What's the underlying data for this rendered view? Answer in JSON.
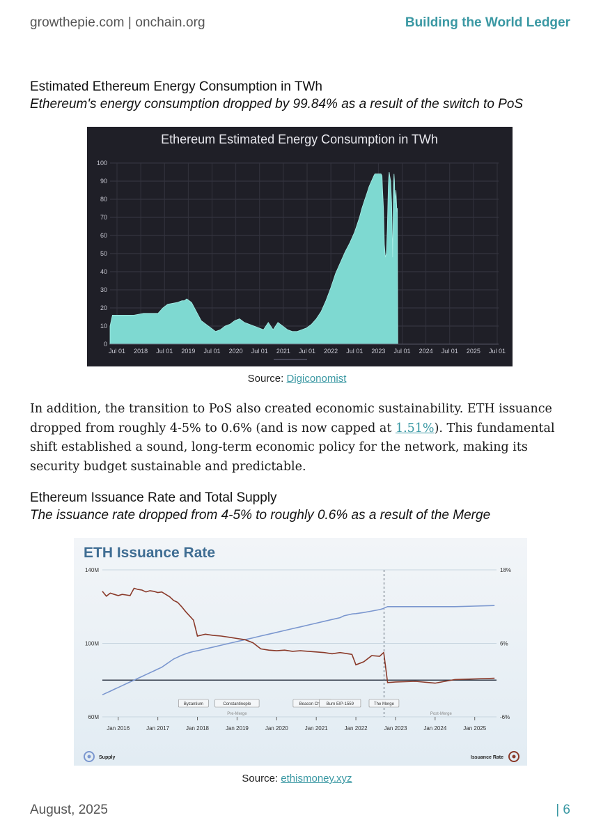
{
  "header": {
    "left": "growthepie.com | onchain.org",
    "right": "Building the World Ledger"
  },
  "section1": {
    "title": "Estimated Ethereum Energy Consumption in TWh",
    "subtitle": "Ethereum's energy consumption dropped by 99.84% as a result of the switch to PoS",
    "source_prefix": "Source: ",
    "source_link": "Digiconomist"
  },
  "paragraph": {
    "text1": "In addition, the transition to PoS also created economic sustainability. ETH issuance dropped from roughly 4-5% to 0.6% (and is now capped at ",
    "link": "1.51%",
    "text2": "). This fundamental shift established a sound, long-term economic policy for the network, making its security budget sustainable and predictable."
  },
  "section2": {
    "title": "Ethereum Issuance Rate and Total Supply",
    "subtitle": "The issuance rate dropped from 4-5% to roughly 0.6% as a result of the Merge",
    "source_prefix": "Source: ",
    "source_link": "ethismoney.xyz"
  },
  "footer": {
    "left": "August, 2025",
    "right": "| 6"
  },
  "chart_data": [
    {
      "type": "area",
      "title": "Ethereum Estimated Energy Consumption in TWh",
      "x_tick_labels": [
        "Jul 01",
        "2018",
        "Jul 01",
        "2019",
        "Jul 01",
        "2020",
        "Jul 01",
        "2021",
        "Jul 01",
        "2022",
        "Jul 01",
        "2023",
        "Jul 01",
        "2024",
        "Jul 01",
        "2025",
        "Jul 01"
      ],
      "y_ticks": [
        0,
        10,
        20,
        30,
        40,
        50,
        60,
        70,
        80,
        90,
        100
      ],
      "ylim": [
        0,
        100
      ],
      "x_unit": "years since 2017-07-01",
      "xlim": [
        0,
        8.1
      ],
      "colors": {
        "fill": "#7ed9d1",
        "background": "#1f1f27"
      },
      "x": [
        0.0,
        0.05,
        0.2,
        0.5,
        0.7,
        0.9,
        1.0,
        1.1,
        1.2,
        1.4,
        1.5,
        1.55,
        1.6,
        1.7,
        1.8,
        1.9,
        2.0,
        2.1,
        2.2,
        2.3,
        2.4,
        2.5,
        2.6,
        2.7,
        2.8,
        2.9,
        3.0,
        3.1,
        3.2,
        3.3,
        3.4,
        3.5,
        3.6,
        3.7,
        3.8,
        3.9,
        4.0,
        4.1,
        4.2,
        4.3,
        4.4,
        4.5,
        4.6,
        4.7,
        4.8,
        4.9,
        5.0,
        5.1,
        5.2,
        5.25,
        5.3,
        5.35,
        5.4,
        5.45,
        5.5,
        5.52,
        5.54,
        5.56,
        5.57,
        5.58,
        5.6,
        5.62,
        5.65,
        5.67,
        5.68,
        5.7,
        5.72,
        5.74,
        5.76,
        5.78,
        5.8,
        5.81,
        5.82,
        5.83,
        5.85,
        5.87,
        5.88,
        5.89,
        5.9,
        5.91,
        5.92,
        5.93,
        5.94,
        5.95,
        5.96,
        5.97,
        5.98,
        5.99,
        6.0
      ],
      "values": [
        10,
        16,
        16,
        16,
        17,
        17,
        17,
        20,
        22,
        23,
        24,
        24,
        25,
        23,
        18,
        13,
        11,
        9,
        7,
        8,
        10,
        11,
        13,
        14,
        12,
        11,
        10,
        9,
        8,
        12,
        8,
        12,
        10,
        8,
        7,
        7,
        8,
        9,
        11,
        14,
        18,
        24,
        31,
        39,
        45,
        51,
        56,
        62,
        70,
        75,
        79,
        83,
        87,
        90,
        93,
        94,
        94,
        94,
        94,
        94,
        94,
        94,
        94,
        93,
        86,
        75,
        55,
        48,
        50,
        64,
        87,
        92,
        95,
        93,
        90,
        78,
        65,
        48,
        64,
        88,
        94,
        90,
        78,
        82,
        85,
        79,
        73,
        75,
        0
      ]
    },
    {
      "type": "line",
      "title": "ETH Issuance Rate",
      "x_tick_labels": [
        "Jan 2016",
        "Jan 2017",
        "Jan 2018",
        "Jan 2019",
        "Jan 2020",
        "Jan 2021",
        "Jan 2022",
        "Jan 2023",
        "Jan 2024",
        "Jan 2025"
      ],
      "y_left_ticks": [
        "140M",
        "100M",
        "60M"
      ],
      "y_right_ticks": [
        "18%",
        "6%",
        "-6%"
      ],
      "ylim_left": [
        60,
        140
      ],
      "ylim_right": [
        -6,
        18
      ],
      "annotations": [
        "Byzantium",
        "Constantinople",
        "Beacon Chain",
        "Burn EIP-1559",
        "The Merge",
        "Pre-Merge",
        "Post-Merge"
      ],
      "legend": {
        "left": "Supply",
        "right": "Issuance Rate"
      },
      "colors": {
        "supply": "#7b97cf",
        "issuance": "#8a3a2a"
      },
      "x": [
        2015.6,
        2015.7,
        2015.8,
        2015.9,
        2016.0,
        2016.1,
        2016.2,
        2016.3,
        2016.4,
        2016.5,
        2016.6,
        2016.7,
        2016.8,
        2016.9,
        2017.0,
        2017.1,
        2017.2,
        2017.3,
        2017.4,
        2017.5,
        2017.6,
        2017.7,
        2017.8,
        2017.9,
        2018.0,
        2018.2,
        2018.4,
        2018.6,
        2018.8,
        2019.0,
        2019.2,
        2019.4,
        2019.6,
        2019.8,
        2020.0,
        2020.2,
        2020.4,
        2020.6,
        2020.8,
        2021.0,
        2021.2,
        2021.4,
        2021.6,
        2021.7,
        2021.8,
        2021.9,
        2022.0,
        2022.2,
        2022.4,
        2022.6,
        2022.7,
        2022.71,
        2022.8,
        2023.0,
        2023.5,
        2024.0,
        2024.5,
        2025.0,
        2025.5
      ],
      "series": [
        {
          "name": "Supply",
          "axis": "left",
          "values": [
            72.0,
            73.0,
            74.0,
            75.0,
            76.0,
            77.0,
            78.0,
            79.0,
            80.0,
            81.0,
            82.0,
            83.0,
            84.0,
            85.0,
            86.0,
            87.0,
            88.5,
            90.0,
            91.5,
            92.5,
            93.5,
            94.3,
            95.0,
            95.6,
            96.0,
            97.0,
            98.0,
            99.0,
            100.0,
            101.0,
            102.0,
            103.0,
            104.0,
            105.0,
            106.0,
            107.0,
            108.0,
            109.0,
            110.0,
            111.0,
            112.0,
            113.0,
            114.0,
            115.0,
            115.5,
            116.0,
            116.2,
            116.8,
            117.6,
            118.4,
            119.0,
            119.2,
            120.0,
            120.0,
            120.0,
            120.0,
            120.0,
            120.3,
            120.6
          ]
        },
        {
          "name": "Issuance Rate",
          "axis": "right",
          "values": [
            14.5,
            13.7,
            14.2,
            14.0,
            13.8,
            14.0,
            13.9,
            13.8,
            15.0,
            14.8,
            14.7,
            14.4,
            14.6,
            14.5,
            14.3,
            14.4,
            14.0,
            13.6,
            13.0,
            12.7,
            12.0,
            11.2,
            10.5,
            9.8,
            7.2,
            7.5,
            7.3,
            7.2,
            7.0,
            6.8,
            6.6,
            6.1,
            5.1,
            4.9,
            4.8,
            4.9,
            4.7,
            4.8,
            4.7,
            4.6,
            4.5,
            4.3,
            4.5,
            4.4,
            4.3,
            4.2,
            2.5,
            3.0,
            4.0,
            3.9,
            4.5,
            4.2,
            -0.4,
            -0.3,
            -0.2,
            -0.5,
            0.1,
            0.2,
            0.3
          ]
        }
      ]
    }
  ]
}
